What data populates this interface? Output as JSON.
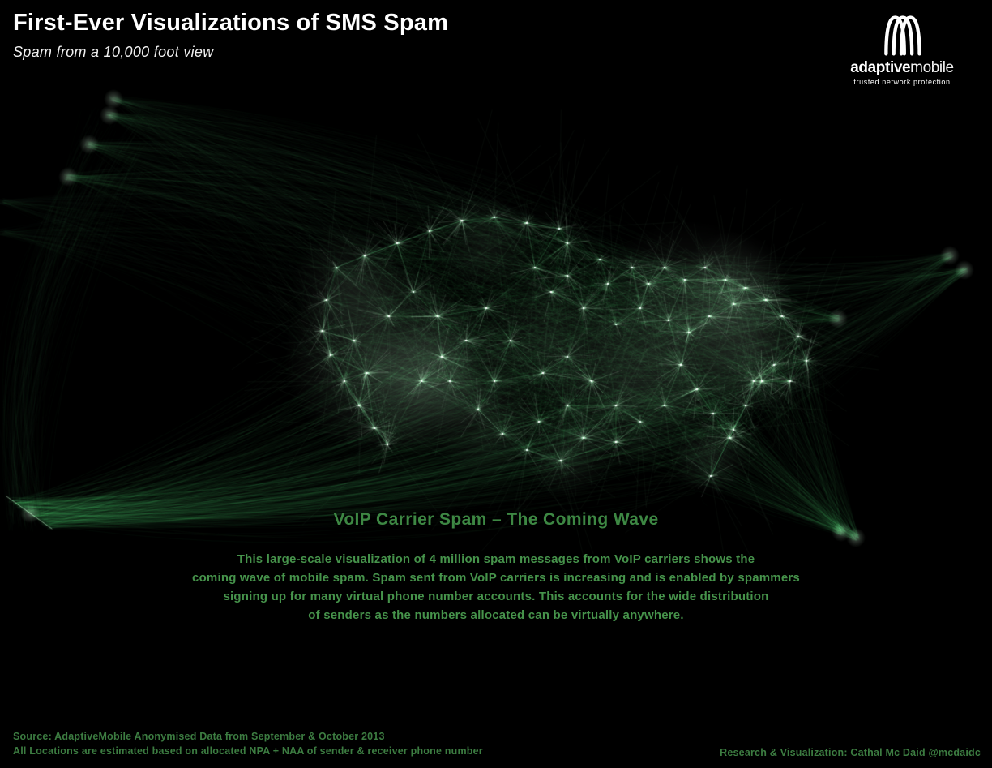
{
  "header": {
    "title": "First-Ever Visualizations of SMS Spam",
    "subtitle": "Spam from a 10,000 foot view"
  },
  "logo": {
    "brand_bold": "adaptive",
    "brand_light": "mobile",
    "tagline": "trusted network protection"
  },
  "caption": {
    "heading": "VoIP Carrier Spam – The Coming Wave",
    "body_lines": [
      "This large-scale visualization of 4 million spam messages from VoIP carriers shows the",
      "coming wave of mobile spam. Spam sent from VoIP carriers is increasing and is enabled by spammers",
      "signing up for many virtual phone number accounts. This accounts for the wide distribution",
      "of senders as the numbers allocated can be virtually anywhere."
    ]
  },
  "footer": {
    "source_line1": "Source: AdaptiveMobile Anonymised Data from September & October 2013",
    "source_line2": "All Locations are estimated based on allocated NPA + NAA of sender & receiver phone number",
    "credit": "Research & Visualization: Cathal Mc Daid @mcdaidc"
  },
  "visualization": {
    "description": "Network visualization of 4 million SMS spam messages from VoIP carriers drawn as glowing green message paths forming the shape of the United States, with long-range sender arcs converging at off-map points on the left and right.",
    "colors": {
      "background": "#000000",
      "edge_green": "#2a9446",
      "spike_green": "#8fe0a0",
      "hub_highlight": "#d7ffde",
      "heading_green": "#3d8743",
      "body_green": "#46934b",
      "footer_green": "#3c7c41",
      "title_white": "#ffffff"
    }
  }
}
